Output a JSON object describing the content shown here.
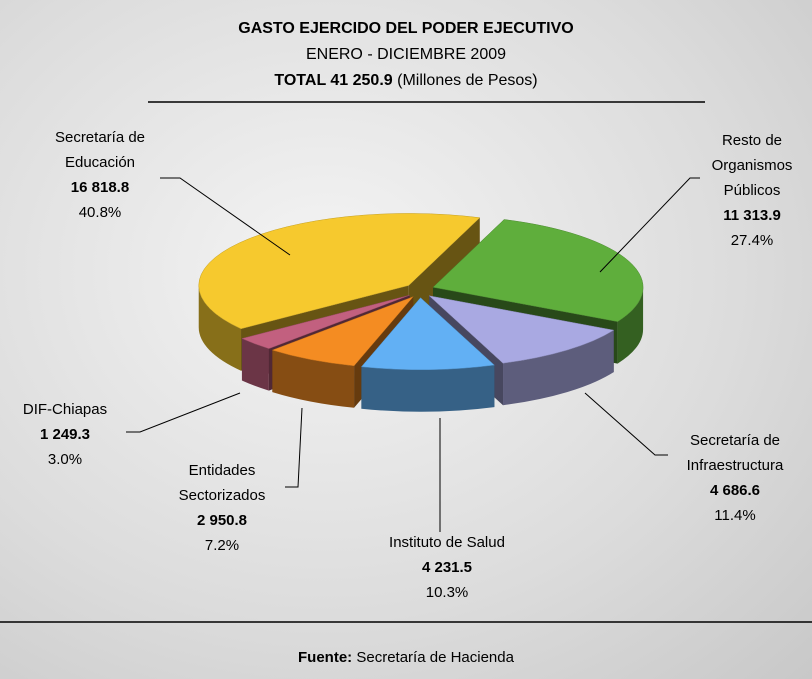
{
  "chart_data": {
    "type": "pie3d",
    "title": "GASTO EJERCIDO DEL PODER EJECUTIVO",
    "subtitle": "ENERO - DICIEMBRE 2009",
    "total_text": "TOTAL 41 250.9",
    "units": "(Millones de Pesos)",
    "categories": [
      "Secretaría de Educación",
      "Resto de Organismos Públicos",
      "Secretaría de Infraestructura",
      "Instituto de Salud",
      "Entidades Sectorizados",
      "DIF-Chiapas"
    ],
    "values": [
      16818.8,
      11313.9,
      4686.6,
      4231.5,
      2950.8,
      1249.3
    ],
    "value_labels": [
      "16 818.8",
      "11 313.9",
      "4 686.6",
      "4 231.5",
      "2 950.8",
      "1 249.3"
    ],
    "percent_labels": [
      "40.8%",
      "27.4%",
      "11.4%",
      "10.3%",
      "7.2%",
      "3.0%"
    ],
    "colors": [
      "#f6c92e",
      "#5fae3c",
      "#a9a9e2",
      "#62b0f4",
      "#f48c22",
      "#c2607f"
    ],
    "source_label": "Fuente:",
    "source": "Secretaría de Hacienda"
  }
}
